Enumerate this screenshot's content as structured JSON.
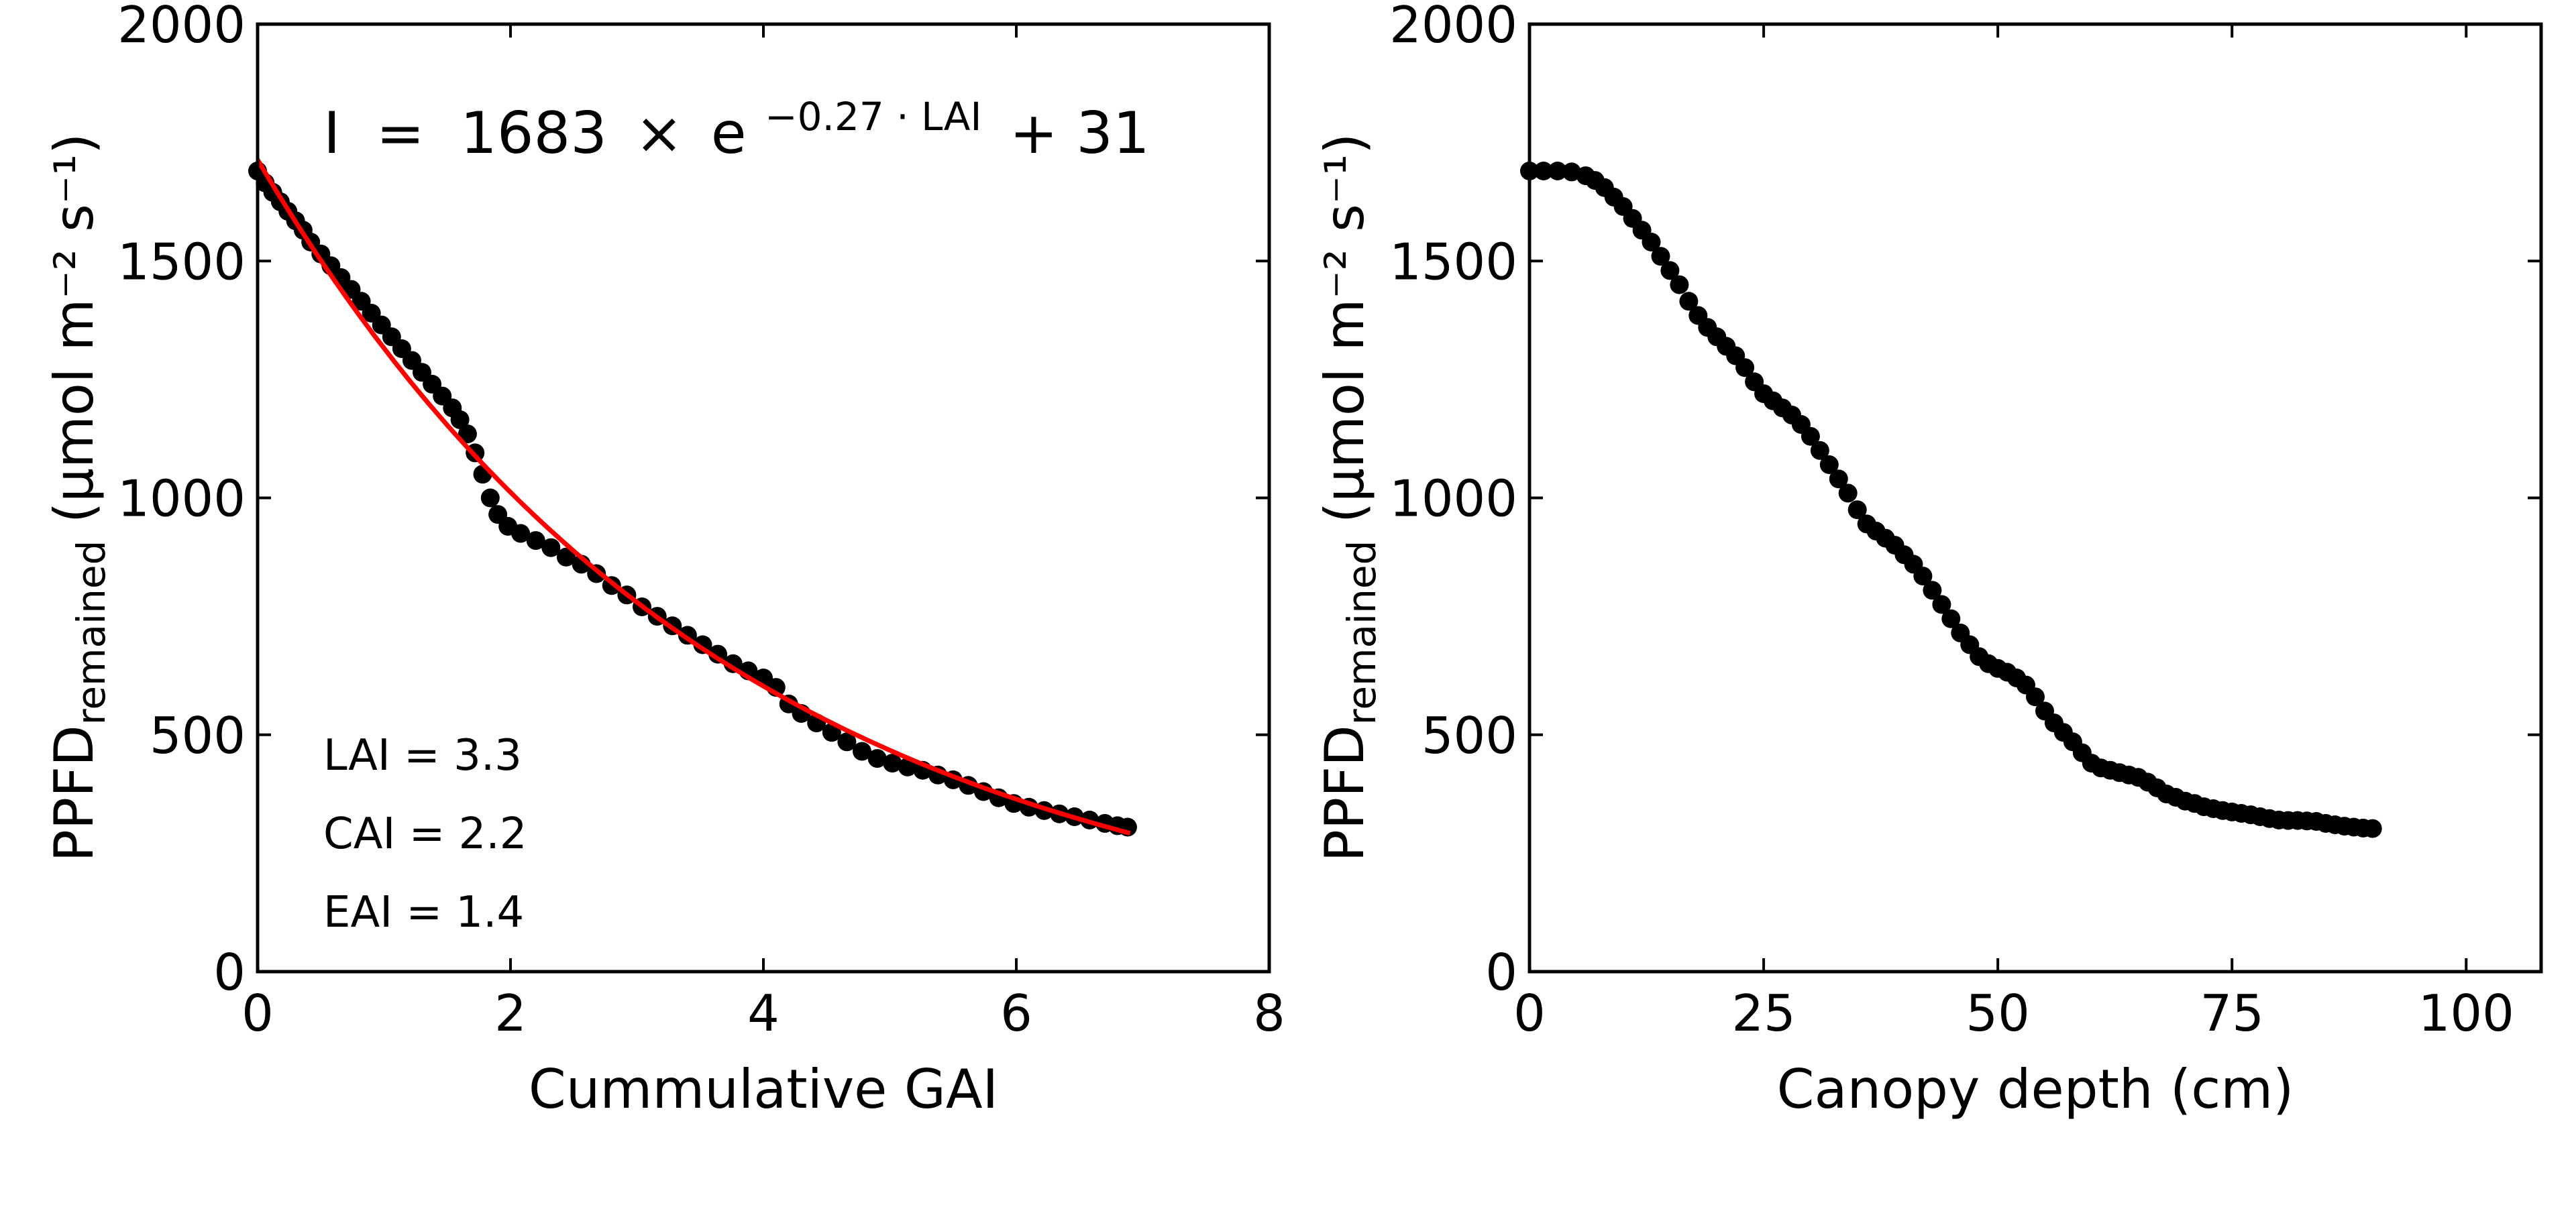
{
  "chart_data": [
    {
      "type": "scatter",
      "xlabel": "Cummulative GAI",
      "ylabel": {
        "main": "PPFD",
        "sub": "remained",
        "unit": " (µmol m⁻² s⁻¹)"
      },
      "xlim": [
        0,
        8
      ],
      "ylim": [
        0,
        2000
      ],
      "xticks": [
        0,
        2,
        4,
        6,
        8
      ],
      "yticks": [
        0,
        500,
        1000,
        1500,
        2000
      ],
      "marker_color": "#000000",
      "fit_color": "#ff0000",
      "equation": {
        "lhs": "I",
        "coef": "1683",
        "exp": "−0.27 · LAI",
        "tail": "+ 31"
      },
      "fit": {
        "a": 1683,
        "b": 0.27,
        "c": 31,
        "x_range": [
          0,
          6.9
        ]
      },
      "annotations": [
        "LAI = 3.3",
        "CAI = 2.2",
        "EAI = 1.4"
      ],
      "points": [
        {
          "x": 0.0,
          "y": 1690
        },
        {
          "x": 0.06,
          "y": 1665
        },
        {
          "x": 0.12,
          "y": 1645
        },
        {
          "x": 0.18,
          "y": 1625
        },
        {
          "x": 0.24,
          "y": 1605
        },
        {
          "x": 0.3,
          "y": 1585
        },
        {
          "x": 0.36,
          "y": 1565
        },
        {
          "x": 0.42,
          "y": 1540
        },
        {
          "x": 0.5,
          "y": 1515
        },
        {
          "x": 0.58,
          "y": 1490
        },
        {
          "x": 0.66,
          "y": 1465
        },
        {
          "x": 0.74,
          "y": 1440
        },
        {
          "x": 0.82,
          "y": 1415
        },
        {
          "x": 0.9,
          "y": 1390
        },
        {
          "x": 0.98,
          "y": 1365
        },
        {
          "x": 1.06,
          "y": 1340
        },
        {
          "x": 1.14,
          "y": 1315
        },
        {
          "x": 1.22,
          "y": 1290
        },
        {
          "x": 1.3,
          "y": 1265
        },
        {
          "x": 1.38,
          "y": 1240
        },
        {
          "x": 1.46,
          "y": 1215
        },
        {
          "x": 1.54,
          "y": 1190
        },
        {
          "x": 1.6,
          "y": 1165
        },
        {
          "x": 1.66,
          "y": 1135
        },
        {
          "x": 1.72,
          "y": 1095
        },
        {
          "x": 1.78,
          "y": 1050
        },
        {
          "x": 1.84,
          "y": 1000
        },
        {
          "x": 1.9,
          "y": 965
        },
        {
          "x": 1.98,
          "y": 940
        },
        {
          "x": 2.08,
          "y": 925
        },
        {
          "x": 2.2,
          "y": 910
        },
        {
          "x": 2.32,
          "y": 895
        },
        {
          "x": 2.44,
          "y": 875
        },
        {
          "x": 2.56,
          "y": 860
        },
        {
          "x": 2.68,
          "y": 840
        },
        {
          "x": 2.8,
          "y": 815
        },
        {
          "x": 2.92,
          "y": 795
        },
        {
          "x": 3.04,
          "y": 770
        },
        {
          "x": 3.16,
          "y": 750
        },
        {
          "x": 3.28,
          "y": 730
        },
        {
          "x": 3.4,
          "y": 710
        },
        {
          "x": 3.52,
          "y": 690
        },
        {
          "x": 3.64,
          "y": 670
        },
        {
          "x": 3.76,
          "y": 650
        },
        {
          "x": 3.88,
          "y": 635
        },
        {
          "x": 4.0,
          "y": 620
        },
        {
          "x": 4.1,
          "y": 600
        },
        {
          "x": 4.2,
          "y": 565
        },
        {
          "x": 4.3,
          "y": 545
        },
        {
          "x": 4.42,
          "y": 525
        },
        {
          "x": 4.54,
          "y": 505
        },
        {
          "x": 4.66,
          "y": 485
        },
        {
          "x": 4.78,
          "y": 465
        },
        {
          "x": 4.9,
          "y": 450
        },
        {
          "x": 5.02,
          "y": 440
        },
        {
          "x": 5.14,
          "y": 432
        },
        {
          "x": 5.26,
          "y": 425
        },
        {
          "x": 5.38,
          "y": 415
        },
        {
          "x": 5.5,
          "y": 405
        },
        {
          "x": 5.62,
          "y": 393
        },
        {
          "x": 5.74,
          "y": 380
        },
        {
          "x": 5.86,
          "y": 367
        },
        {
          "x": 5.98,
          "y": 355
        },
        {
          "x": 6.1,
          "y": 347
        },
        {
          "x": 6.22,
          "y": 340
        },
        {
          "x": 6.34,
          "y": 333
        },
        {
          "x": 6.46,
          "y": 327
        },
        {
          "x": 6.58,
          "y": 320
        },
        {
          "x": 6.7,
          "y": 313
        },
        {
          "x": 6.8,
          "y": 308
        },
        {
          "x": 6.88,
          "y": 305
        }
      ]
    },
    {
      "type": "scatter",
      "xlabel": "Canopy depth (cm)",
      "ylabel": {
        "main": "PPFD",
        "sub": "remained",
        "unit": " (µmol m⁻² s⁻¹)"
      },
      "xlim": [
        0,
        108
      ],
      "ylim": [
        0,
        2000
      ],
      "xticks": [
        0,
        25,
        50,
        75,
        100
      ],
      "yticks": [
        0,
        500,
        1000,
        1500,
        2000
      ],
      "marker_color": "#000000",
      "points": [
        {
          "x": 0,
          "y": 1690
        },
        {
          "x": 1.5,
          "y": 1690
        },
        {
          "x": 3,
          "y": 1690
        },
        {
          "x": 4.5,
          "y": 1688
        },
        {
          "x": 6,
          "y": 1680
        },
        {
          "x": 7,
          "y": 1670
        },
        {
          "x": 8,
          "y": 1655
        },
        {
          "x": 9,
          "y": 1635
        },
        {
          "x": 10,
          "y": 1615
        },
        {
          "x": 11,
          "y": 1590
        },
        {
          "x": 12,
          "y": 1565
        },
        {
          "x": 13,
          "y": 1540
        },
        {
          "x": 14,
          "y": 1510
        },
        {
          "x": 15,
          "y": 1480
        },
        {
          "x": 16,
          "y": 1450
        },
        {
          "x": 17,
          "y": 1415
        },
        {
          "x": 18,
          "y": 1385
        },
        {
          "x": 19,
          "y": 1360
        },
        {
          "x": 20,
          "y": 1340
        },
        {
          "x": 21,
          "y": 1320
        },
        {
          "x": 22,
          "y": 1300
        },
        {
          "x": 23,
          "y": 1275
        },
        {
          "x": 24,
          "y": 1245
        },
        {
          "x": 25,
          "y": 1220
        },
        {
          "x": 26,
          "y": 1205
        },
        {
          "x": 27,
          "y": 1190
        },
        {
          "x": 28,
          "y": 1175
        },
        {
          "x": 29,
          "y": 1155
        },
        {
          "x": 30,
          "y": 1130
        },
        {
          "x": 31,
          "y": 1100
        },
        {
          "x": 32,
          "y": 1070
        },
        {
          "x": 33,
          "y": 1040
        },
        {
          "x": 34,
          "y": 1010
        },
        {
          "x": 35,
          "y": 975
        },
        {
          "x": 36,
          "y": 945
        },
        {
          "x": 37,
          "y": 930
        },
        {
          "x": 38,
          "y": 915
        },
        {
          "x": 39,
          "y": 900
        },
        {
          "x": 40,
          "y": 880
        },
        {
          "x": 41,
          "y": 860
        },
        {
          "x": 42,
          "y": 835
        },
        {
          "x": 43,
          "y": 805
        },
        {
          "x": 44,
          "y": 775
        },
        {
          "x": 45,
          "y": 745
        },
        {
          "x": 46,
          "y": 715
        },
        {
          "x": 47,
          "y": 690
        },
        {
          "x": 48,
          "y": 665
        },
        {
          "x": 49,
          "y": 650
        },
        {
          "x": 50,
          "y": 640
        },
        {
          "x": 51,
          "y": 632
        },
        {
          "x": 52,
          "y": 620
        },
        {
          "x": 53,
          "y": 605
        },
        {
          "x": 54,
          "y": 580
        },
        {
          "x": 55,
          "y": 550
        },
        {
          "x": 56,
          "y": 525
        },
        {
          "x": 57,
          "y": 505
        },
        {
          "x": 58,
          "y": 485
        },
        {
          "x": 59,
          "y": 462
        },
        {
          "x": 60,
          "y": 440
        },
        {
          "x": 61,
          "y": 430
        },
        {
          "x": 62,
          "y": 425
        },
        {
          "x": 63,
          "y": 420
        },
        {
          "x": 64,
          "y": 415
        },
        {
          "x": 65,
          "y": 410
        },
        {
          "x": 66,
          "y": 400
        },
        {
          "x": 67,
          "y": 388
        },
        {
          "x": 68,
          "y": 375
        },
        {
          "x": 69,
          "y": 368
        },
        {
          "x": 70,
          "y": 360
        },
        {
          "x": 71,
          "y": 355
        },
        {
          "x": 72,
          "y": 348
        },
        {
          "x": 73,
          "y": 344
        },
        {
          "x": 74,
          "y": 340
        },
        {
          "x": 75,
          "y": 337
        },
        {
          "x": 76,
          "y": 334
        },
        {
          "x": 77,
          "y": 331
        },
        {
          "x": 78,
          "y": 327
        },
        {
          "x": 79,
          "y": 323
        },
        {
          "x": 80,
          "y": 320
        },
        {
          "x": 81,
          "y": 319
        },
        {
          "x": 82,
          "y": 319
        },
        {
          "x": 83,
          "y": 318
        },
        {
          "x": 84,
          "y": 317
        },
        {
          "x": 85,
          "y": 313
        },
        {
          "x": 86,
          "y": 310
        },
        {
          "x": 87,
          "y": 307
        },
        {
          "x": 88,
          "y": 305
        },
        {
          "x": 89,
          "y": 303
        },
        {
          "x": 90,
          "y": 302
        }
      ]
    }
  ]
}
